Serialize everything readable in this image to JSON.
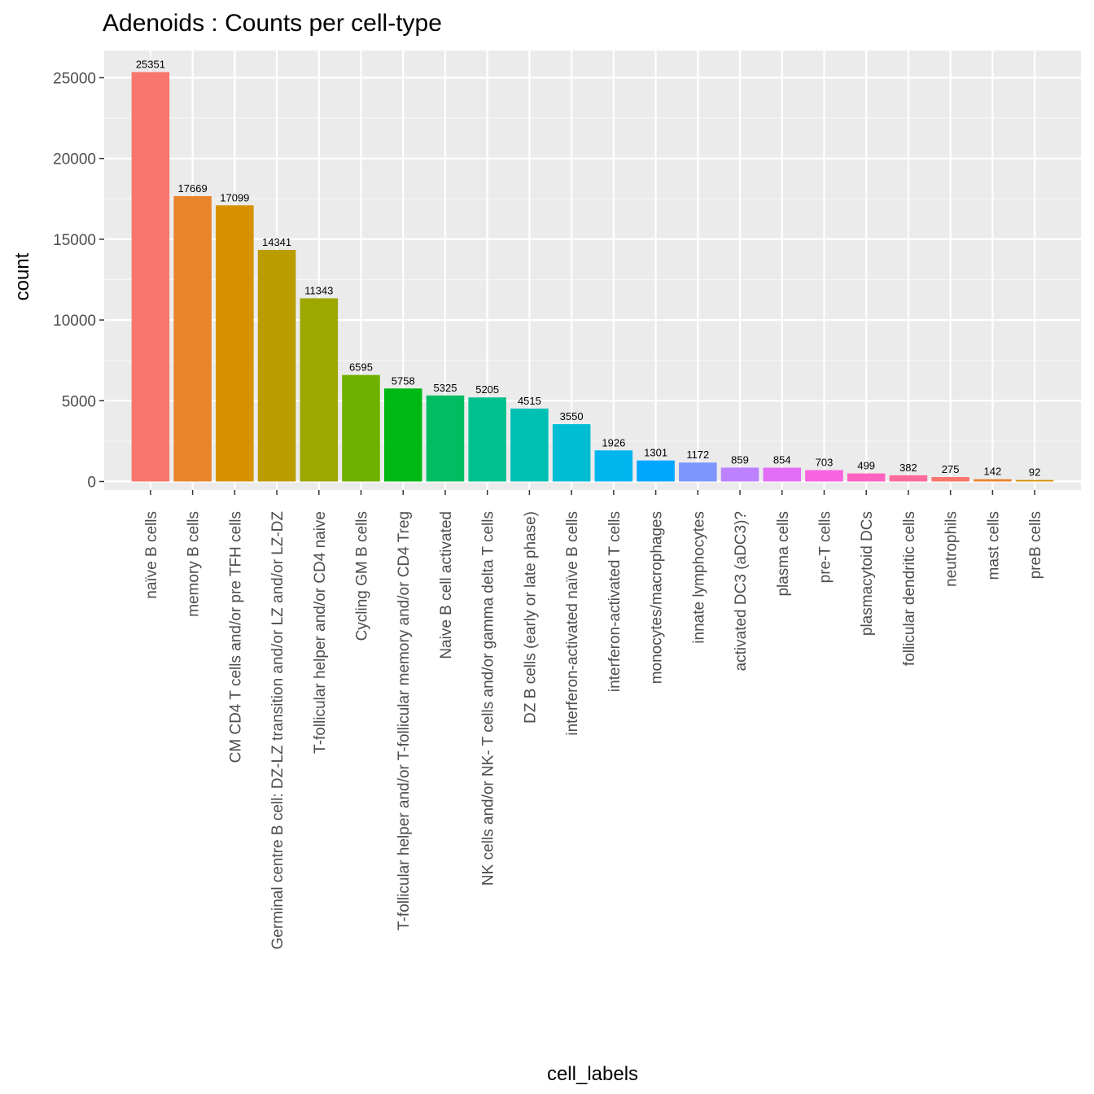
{
  "chart_data": {
    "type": "bar",
    "title": "Adenoids : Counts per cell-type",
    "xlabel": "cell_labels",
    "ylabel": "count",
    "ylim": [
      0,
      27000
    ],
    "yticks": [
      0,
      5000,
      10000,
      15000,
      20000,
      25000
    ],
    "grid": true,
    "legend": "none",
    "categories": [
      "naïve B cells",
      "memory B cells",
      "CM CD4 T cells  and/or pre TFH cells",
      "Germinal centre B cell: DZ-LZ transition and/or LZ and/or LZ-DZ",
      "T-follicular helper and/or CD4 naive",
      "Cycling GM B cells",
      "T-follicular helper and/or T-follicular memory and/or CD4 Treg",
      "Naive B cell activated",
      "NK cells and/or NK- T cells and/or gamma delta T cells",
      "DZ B cells (early or late phase)",
      "interferon-activated naïve B cells",
      "interferon-activated T cells",
      "monocytes/macrophages",
      "innate lymphocytes",
      "activated DC3 (aDC3)?",
      "plasma cells",
      "pre-T cells",
      "plasmacytoid DCs",
      "follicular dendritic cells",
      "neutrophils",
      "mast cells",
      "preB cells"
    ],
    "values": [
      25351,
      17669,
      17099,
      14341,
      11343,
      6595,
      5758,
      5325,
      5205,
      4515,
      3550,
      1926,
      1301,
      1172,
      859,
      854,
      703,
      499,
      382,
      275,
      142,
      92
    ],
    "data_labels": [
      "25351",
      "17669",
      "17099",
      "14341",
      "11343",
      "6595",
      "5758",
      "5325",
      "5205",
      "4515",
      "3550",
      "1926",
      "1301",
      "1172",
      "859",
      "854",
      "703",
      "499",
      "382",
      "275",
      "142",
      "92"
    ],
    "colors": [
      "#F8766D",
      "#E9842C",
      "#D69100",
      "#BC9D00",
      "#9CA700",
      "#6FB000",
      "#00B813",
      "#00BD61",
      "#00C08E",
      "#00C0B4",
      "#00BDD4",
      "#00B5EE",
      "#00A7FF",
      "#7F96FF",
      "#BC81FF",
      "#E26EF7",
      "#F863DF",
      "#FF62BF",
      "#FF6A9A",
      "#F8766D",
      "#E9842C",
      "#D69100"
    ]
  }
}
